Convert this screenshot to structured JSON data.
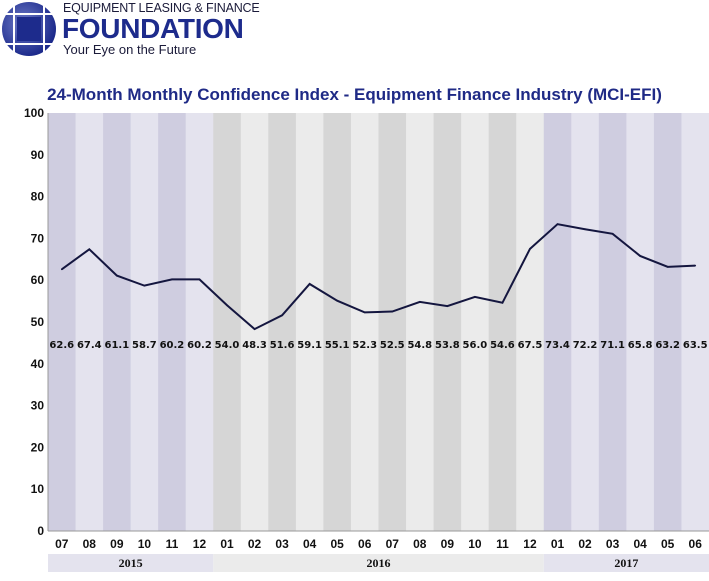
{
  "logo": {
    "line1": "EQUIPMENT LEASING & FINANCE",
    "line2": "FOUNDATION",
    "tagline": "Your Eye on the Future"
  },
  "chart_data": {
    "type": "line",
    "title": "24-Month Monthly Confidence Index - Equipment Finance Industry (MCI-EFI)",
    "categories": [
      "07",
      "08",
      "09",
      "10",
      "11",
      "12",
      "01",
      "02",
      "03",
      "04",
      "05",
      "06",
      "07",
      "08",
      "09",
      "10",
      "11",
      "12",
      "01",
      "02",
      "03",
      "04",
      "05",
      "06"
    ],
    "years": [
      {
        "label": "2015",
        "start": 0,
        "count": 6
      },
      {
        "label": "2016",
        "start": 6,
        "count": 12
      },
      {
        "label": "2017",
        "start": 18,
        "count": 6
      }
    ],
    "values": [
      62.6,
      67.4,
      61.1,
      58.7,
      60.2,
      60.2,
      54.0,
      48.3,
      51.6,
      59.1,
      55.1,
      52.3,
      52.5,
      54.8,
      53.8,
      56.0,
      54.6,
      67.5,
      73.4,
      72.2,
      71.1,
      65.8,
      63.2,
      63.5
    ],
    "ylim": [
      0,
      100
    ],
    "yticks": [
      0,
      10,
      20,
      30,
      40,
      50,
      60,
      70,
      80,
      90,
      100
    ],
    "line_color": "#14163f",
    "band_colors": {
      "2015": [
        "#cfcde0",
        "#e4e3ee"
      ],
      "2016": [
        "#d6d6d6",
        "#ebebeb"
      ],
      "2017": [
        "#cfcde0",
        "#e4e3ee"
      ]
    }
  }
}
